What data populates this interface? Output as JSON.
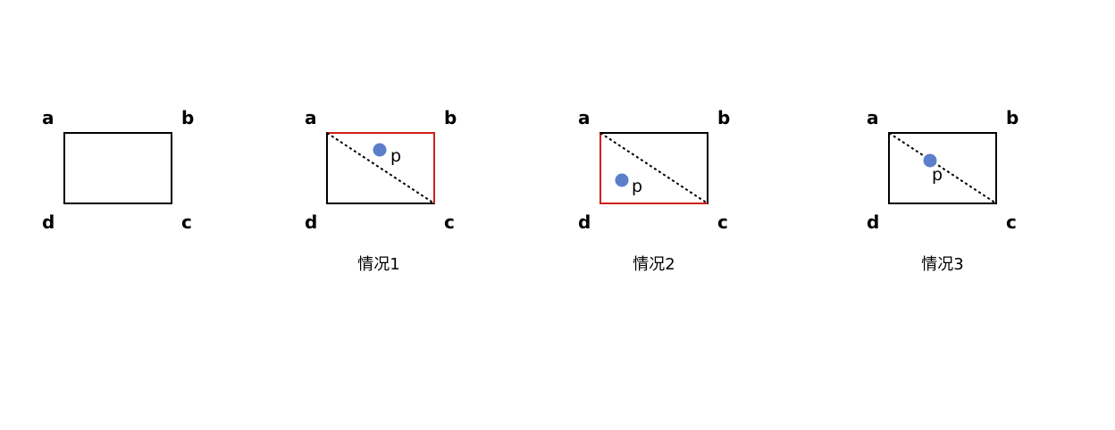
{
  "colors": {
    "rect_stroke": "#000000",
    "highlight_stroke": "#d0201a",
    "diagonal": "#000000",
    "point_fill": "#5b7fcb",
    "background": "#ffffff"
  },
  "panels": [
    {
      "corners": {
        "a": "a",
        "b": "b",
        "c": "c",
        "d": "d"
      },
      "caption": "",
      "highlight": "none",
      "show_diagonal": false,
      "point": null
    },
    {
      "corners": {
        "a": "a",
        "b": "b",
        "c": "c",
        "d": "d"
      },
      "caption": "情况1",
      "highlight": "upper-right-triangle",
      "show_diagonal": true,
      "point": {
        "label": "p",
        "region": "above-diagonal"
      }
    },
    {
      "corners": {
        "a": "a",
        "b": "b",
        "c": "c",
        "d": "d"
      },
      "caption": "情况2",
      "highlight": "lower-left-triangle",
      "show_diagonal": true,
      "point": {
        "label": "p",
        "region": "below-diagonal"
      }
    },
    {
      "corners": {
        "a": "a",
        "b": "b",
        "c": "c",
        "d": "d"
      },
      "caption": "情况3",
      "highlight": "none",
      "show_diagonal": true,
      "point": {
        "label": "p",
        "region": "on-diagonal"
      }
    }
  ]
}
